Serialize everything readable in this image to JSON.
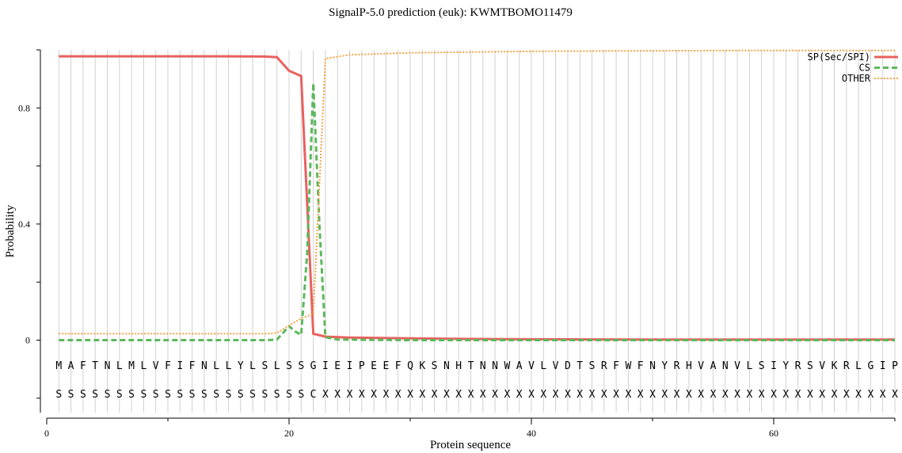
{
  "chart_data": {
    "type": "line",
    "title": "SignalP-5.0 prediction (euk):  KWMTBOMO11479",
    "xlabel": "Protein sequence",
    "ylabel": "Probability",
    "xlim": [
      0,
      70
    ],
    "ylim": [
      -0.25,
      1.0
    ],
    "x_ticks": [
      0,
      20,
      40,
      60
    ],
    "y_ticks": [
      0,
      0.4,
      0.8
    ],
    "y_tick_labels": [
      "0",
      "0.4",
      "0.8"
    ],
    "grid": "vertical lines at each residue",
    "legend": "top-right",
    "sequence": "MAFTNLMLVFIFNLLYLSLSSGIEIPEEFQKSNHTNNWAVLVDTSRFWFNYRHVANVLSIYRSVKRLGIP",
    "labels": "SSSSSSSSSSSSSSSSSSSSSCXXXXXXXXXXXXXXXXXXXXXXXXXXXXXXXXXXXXXXXXXXXXXXXX",
    "series": [
      {
        "name": "SP(Sec/SPI)",
        "color": "#e8615f",
        "style": "solid",
        "x": [
          1,
          5,
          10,
          15,
          18,
          19,
          20,
          21,
          22,
          23,
          25,
          30,
          35,
          40,
          50,
          60,
          70
        ],
        "values": [
          0.978,
          0.978,
          0.978,
          0.978,
          0.977,
          0.975,
          0.928,
          0.91,
          0.022,
          0.012,
          0.009,
          0.006,
          0.004,
          0.003,
          0.002,
          0.002,
          0.002
        ]
      },
      {
        "name": "CS",
        "color": "#5cb85c",
        "style": "dashed",
        "x": [
          1,
          10,
          18,
          19,
          20,
          20.5,
          21,
          21.5,
          22,
          22.5,
          23,
          24,
          30,
          40,
          50,
          60,
          70
        ],
        "values": [
          0.0,
          0.0,
          0.0,
          0.002,
          0.048,
          0.03,
          0.018,
          0.3,
          0.885,
          0.4,
          0.01,
          0.002,
          0.0,
          0.0,
          0.0,
          0.0,
          0.0
        ]
      },
      {
        "name": "OTHER",
        "color": "#f5a142",
        "style": "dotted",
        "x": [
          1,
          10,
          18,
          19,
          20,
          21,
          22,
          23,
          25,
          30,
          40,
          50,
          60,
          70
        ],
        "values": [
          0.022,
          0.022,
          0.022,
          0.025,
          0.05,
          0.075,
          0.09,
          0.97,
          0.983,
          0.99,
          0.995,
          0.997,
          0.998,
          0.998
        ]
      }
    ]
  }
}
